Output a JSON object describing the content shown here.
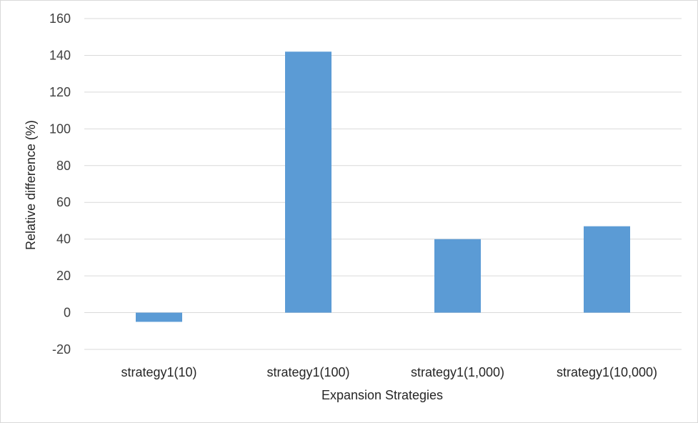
{
  "chart_data": {
    "type": "bar",
    "title": "",
    "xlabel": "Expansion Strategies",
    "ylabel": "Relative difference (%)",
    "categories": [
      "strategy1(10)",
      "strategy1(100)",
      "strategy1(1,000)",
      "strategy1(10,000)"
    ],
    "values": [
      -5,
      142,
      40,
      47
    ],
    "ylim": [
      -20,
      160
    ],
    "yticks": [
      -20,
      0,
      20,
      40,
      60,
      80,
      100,
      120,
      140,
      160
    ],
    "ytick_labels": [
      "-20",
      "0",
      "20",
      "40",
      "60",
      "80",
      "100",
      "120",
      "140",
      "160"
    ],
    "grid": true,
    "legend": "none",
    "colors": {
      "bar": "#5b9bd5",
      "grid": "#d9d9d9"
    }
  }
}
